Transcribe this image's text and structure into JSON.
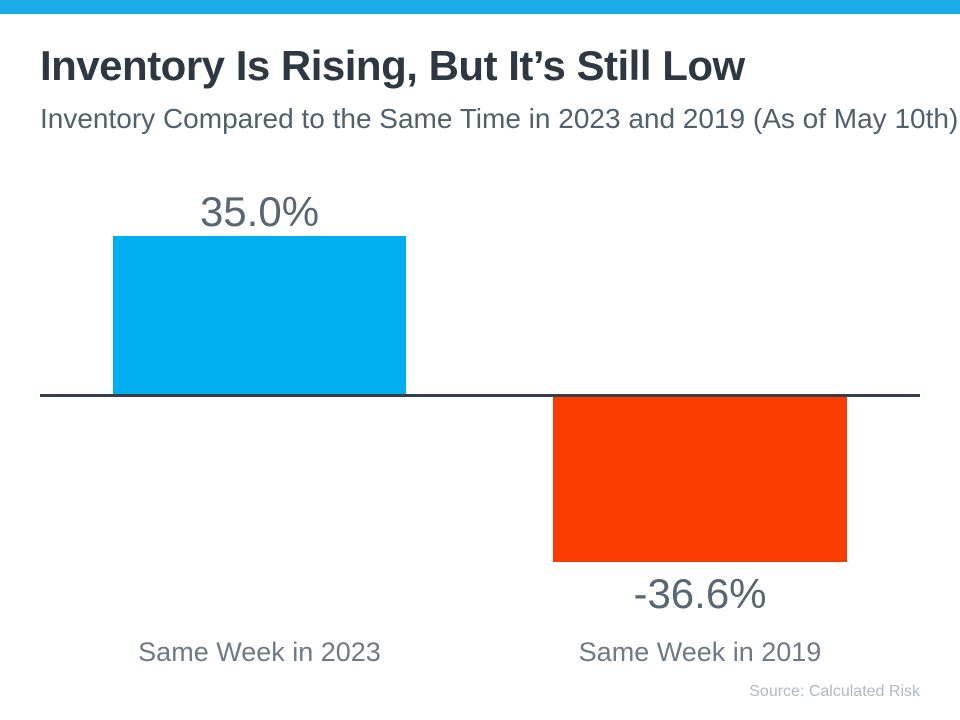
{
  "page": {
    "accent_strip_color": "#1AACE9",
    "background_color": "#FFFFFF"
  },
  "chart_data": {
    "type": "bar",
    "title": "Inventory Is Rising, But It’s Still Low",
    "subtitle": "Inventory Compared to the Same Time in 2023 and 2019 (As of May 10th)",
    "categories": [
      "Same Week in 2023",
      "Same Week in 2019"
    ],
    "values": [
      35.0,
      -36.6
    ],
    "value_labels": [
      "35.0%",
      "-36.6%"
    ],
    "series_colors": [
      "#00AEEF",
      "#FB3B00"
    ],
    "axis_line_color": "#343F4B",
    "baseline": 0,
    "ylim": [
      -45,
      40
    ],
    "grid": false,
    "legend": "none",
    "xlabel": "",
    "ylabel": "",
    "source": "Source: Calculated Risk"
  }
}
